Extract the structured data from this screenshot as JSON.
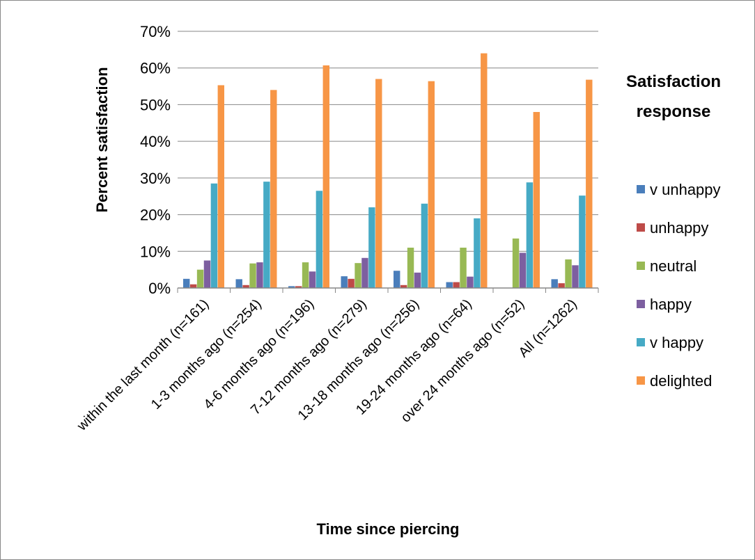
{
  "chart_data": {
    "type": "bar",
    "title": "",
    "xlabel": "Time since piercing",
    "ylabel": "Percent satisfaction",
    "ylim": [
      0,
      70
    ],
    "yticks": [
      "0%",
      "10%",
      "20%",
      "30%",
      "40%",
      "50%",
      "60%",
      "70%"
    ],
    "grid": true,
    "legend_title_lines": [
      "Satisfaction",
      "response"
    ],
    "legend_position": "right",
    "categories": [
      "within the last month (n=161)",
      "1-3 months ago (n=254)",
      "4-6 months ago (n=196)",
      "7-12 months ago (n=279)",
      "13-18 months ago (n=256)",
      "19-24 months ago (n=64)",
      "over 24 months ago (n=52)",
      "All (n=1262)"
    ],
    "series": [
      {
        "name": "v unhappy",
        "color": "#4a7ebb",
        "values": [
          2.5,
          2.4,
          0.5,
          3.2,
          4.7,
          1.6,
          0,
          2.4
        ]
      },
      {
        "name": "unhappy",
        "color": "#be4b48",
        "values": [
          1.0,
          0.8,
          0.5,
          2.5,
          0.8,
          1.6,
          0,
          1.3
        ]
      },
      {
        "name": "neutral",
        "color": "#98b954",
        "values": [
          5.0,
          6.7,
          7.0,
          6.8,
          11.0,
          11.0,
          13.5,
          7.8
        ]
      },
      {
        "name": "happy",
        "color": "#7d5fa0",
        "values": [
          7.5,
          7.0,
          4.5,
          8.2,
          4.2,
          3.1,
          9.6,
          6.2
        ]
      },
      {
        "name": "v happy",
        "color": "#46aac5",
        "values": [
          28.5,
          29.0,
          26.5,
          22.0,
          23.0,
          19.0,
          28.8,
          25.2
        ]
      },
      {
        "name": "delighted",
        "color": "#f79646",
        "values": [
          55.3,
          54.0,
          60.7,
          57.0,
          56.4,
          64.0,
          48.0,
          56.8
        ]
      }
    ]
  }
}
